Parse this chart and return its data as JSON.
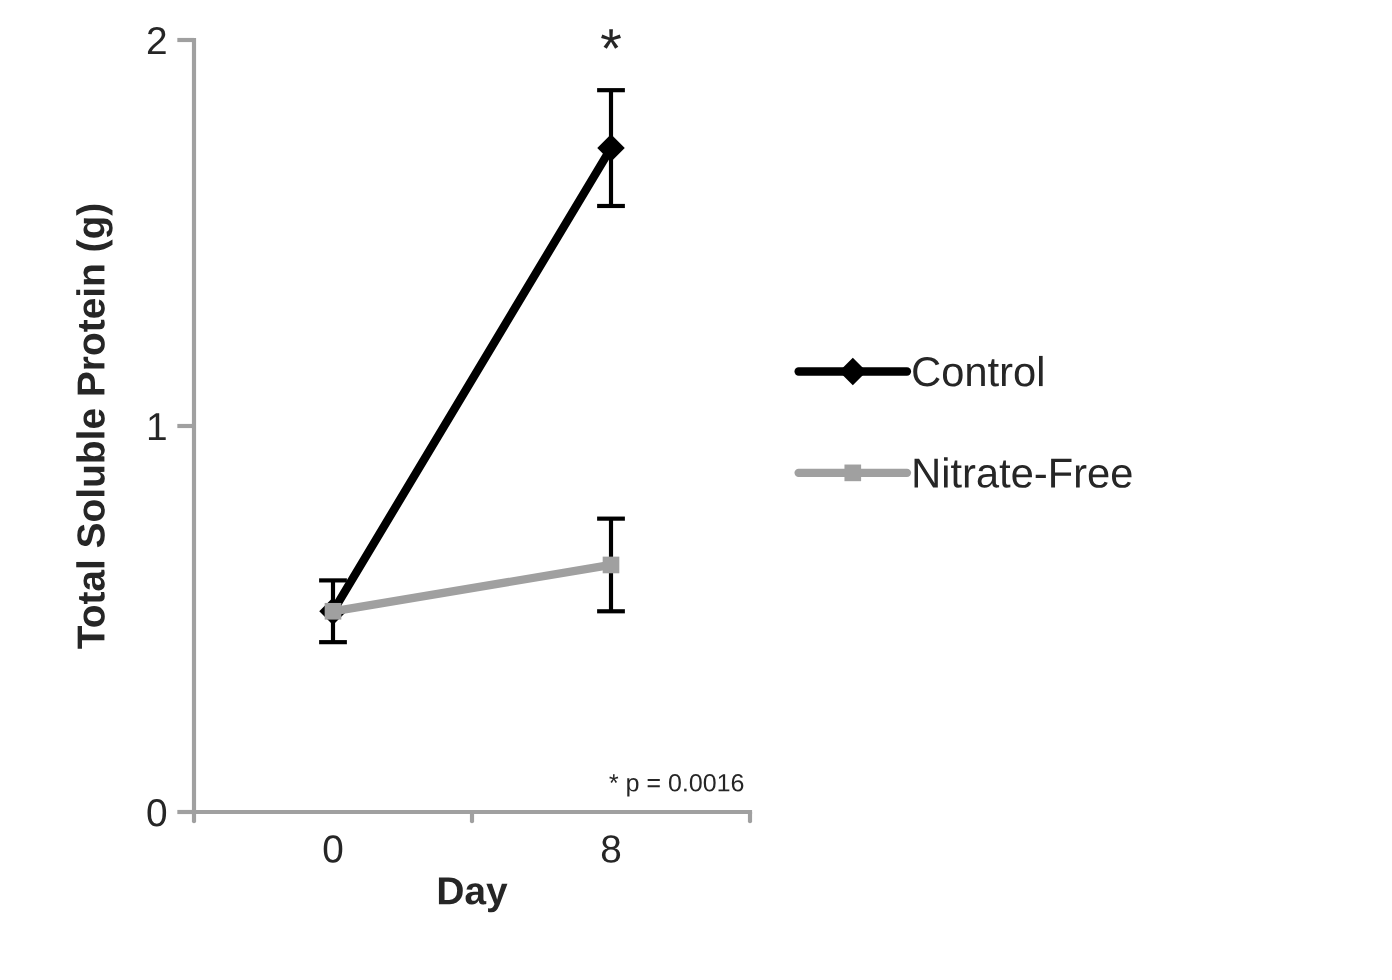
{
  "chart_data": {
    "type": "line",
    "xlabel": "Day",
    "ylabel": "Total Soluble Protein (g)",
    "categories": [
      "0",
      "8"
    ],
    "series": [
      {
        "name": "Control",
        "color": "#000000",
        "values": [
          0.52,
          1.72
        ],
        "errors": [
          0.08,
          0.15
        ],
        "marker": "diamond"
      },
      {
        "name": "Nitrate-Free",
        "color": "#a0a0a0",
        "values": [
          0.52,
          0.64
        ],
        "errors": [
          null,
          0.12
        ],
        "marker": "square"
      }
    ],
    "ylim": [
      0,
      2
    ],
    "yticks": [
      0,
      1,
      2
    ],
    "annotations": [
      {
        "text": "*",
        "x": "8",
        "y": 1.87
      },
      "* p = 0.0016"
    ],
    "grid": false,
    "legend": "right",
    "line_style": "solid"
  }
}
